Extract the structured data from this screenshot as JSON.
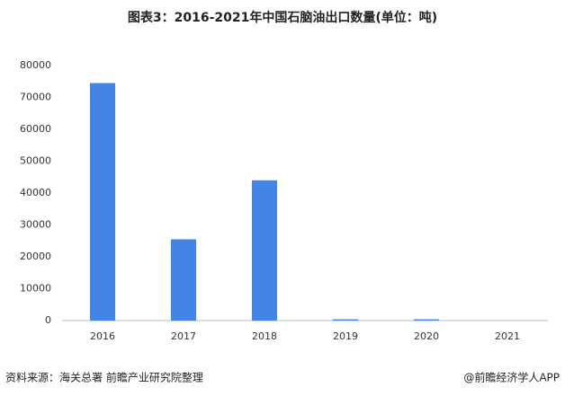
{
  "chart_data": {
    "type": "bar",
    "title": "图表3：2016-2021年中国石脑油出口数量(单位：吨)",
    "categories": [
      "2016",
      "2017",
      "2018",
      "2019",
      "2020",
      "2021"
    ],
    "values": [
      74500,
      25500,
      44000,
      400,
      400,
      0
    ],
    "color": "#4285e6",
    "ylim": [
      0,
      80000
    ],
    "yticks": [
      0,
      10000,
      20000,
      30000,
      40000,
      50000,
      60000,
      70000,
      80000
    ],
    "grid": false,
    "source": "资料来源：海关总署 前瞻产业研究院整理",
    "credit": "@前瞻经济学人APP"
  }
}
